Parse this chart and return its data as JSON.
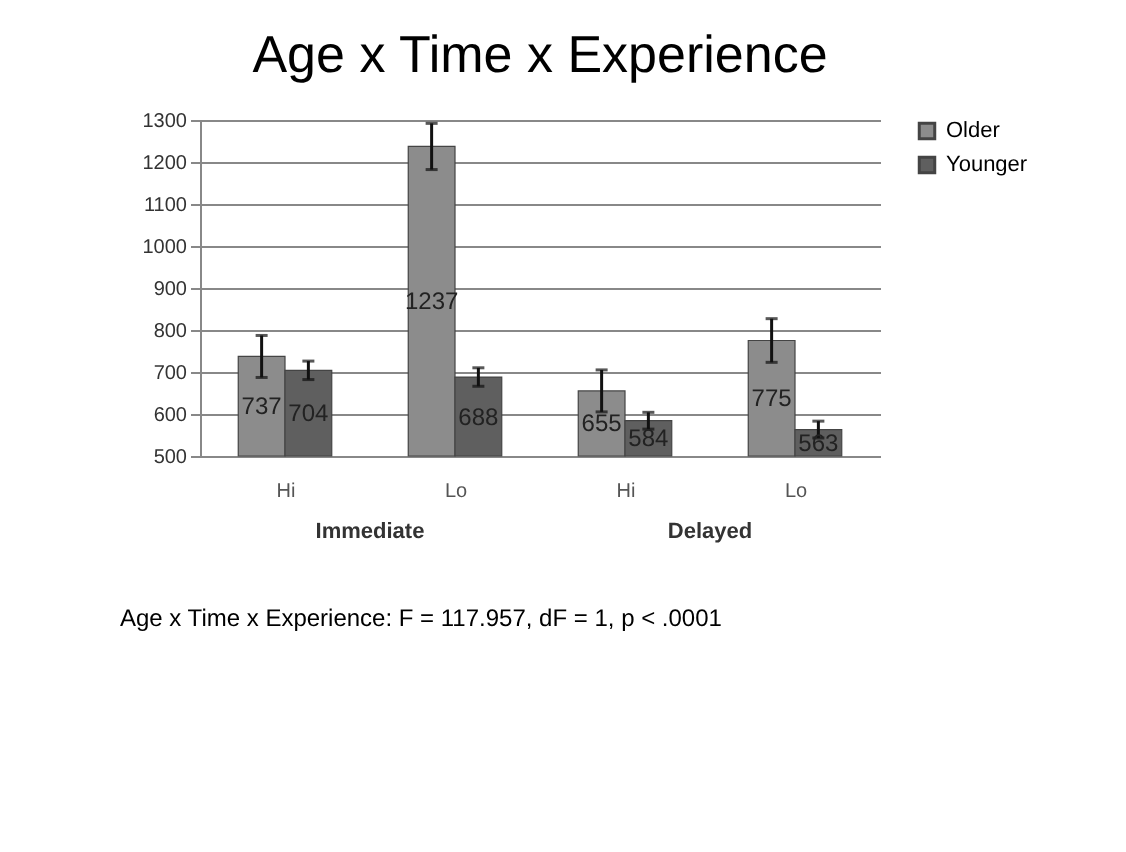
{
  "chart_data": {
    "type": "bar",
    "title": "Age x Time x Experience",
    "categories": [
      "Hi",
      "Lo",
      "Hi",
      "Lo"
    ],
    "series": [
      {
        "name": "Older",
        "color": "#8c8c8c",
        "values": [
          737,
          1237,
          655,
          775
        ],
        "errors": [
          50,
          55,
          50,
          52
        ]
      },
      {
        "name": "Younger",
        "color": "#5f5f5f",
        "values": [
          704,
          688,
          584,
          563
        ],
        "errors": [
          22,
          22,
          20,
          20
        ]
      }
    ],
    "ylim": [
      500,
      1300
    ],
    "yticks": [
      500,
      600,
      700,
      800,
      900,
      1000,
      1100,
      1200,
      1300
    ],
    "grid": "y",
    "legend": "right",
    "data_labels": true,
    "annotations": [
      "Immediate",
      "Delayed",
      "Age x Time x Experience:  F = 117.957, dF = 1, p < .0001"
    ]
  }
}
